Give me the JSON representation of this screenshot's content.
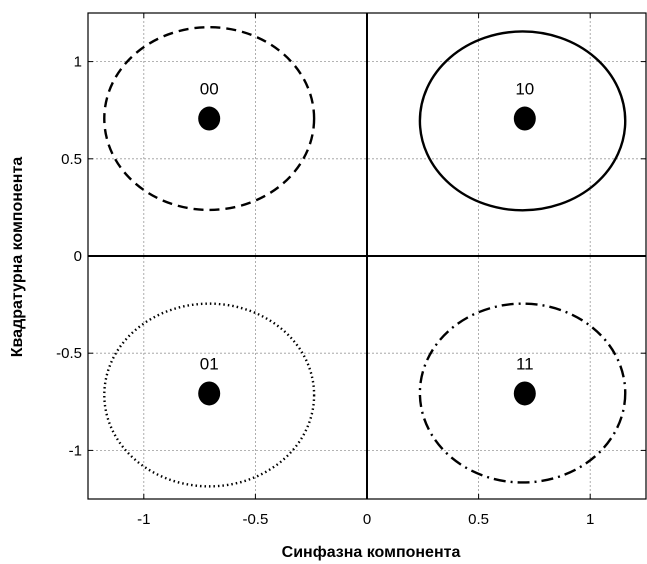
{
  "chart_data": {
    "type": "scatter",
    "xlabel": "Синфазна компонента",
    "ylabel": "Квадратурна компонента",
    "xlim": [
      -1.25,
      1.25
    ],
    "ylim": [
      -1.25,
      1.25
    ],
    "xticks": [
      -1,
      -0.5,
      0,
      0.5,
      1
    ],
    "yticks": [
      -1,
      -0.5,
      0,
      0.5,
      1
    ],
    "xtick_labels": [
      "-1",
      "-0.5",
      "0",
      "0.5",
      "1"
    ],
    "ytick_labels": [
      "-1",
      "-0.5",
      "0",
      "0.5",
      "1"
    ],
    "grid": true,
    "points": [
      {
        "label": "00",
        "x": -0.707,
        "y": 0.707,
        "circle_center": [
          -0.707,
          0.707
        ],
        "circle_radius": 0.47,
        "line_style": "dashed"
      },
      {
        "label": "10",
        "x": 0.707,
        "y": 0.707,
        "circle_center": [
          0.697,
          0.695
        ],
        "circle_radius": 0.46,
        "line_style": "solid"
      },
      {
        "label": "01",
        "x": -0.707,
        "y": -0.707,
        "circle_center": [
          -0.707,
          -0.715
        ],
        "circle_radius": 0.47,
        "line_style": "dotted"
      },
      {
        "label": "11",
        "x": 0.707,
        "y": -0.707,
        "circle_center": [
          0.697,
          -0.705
        ],
        "circle_radius": 0.46,
        "line_style": "dash-dot"
      }
    ]
  }
}
